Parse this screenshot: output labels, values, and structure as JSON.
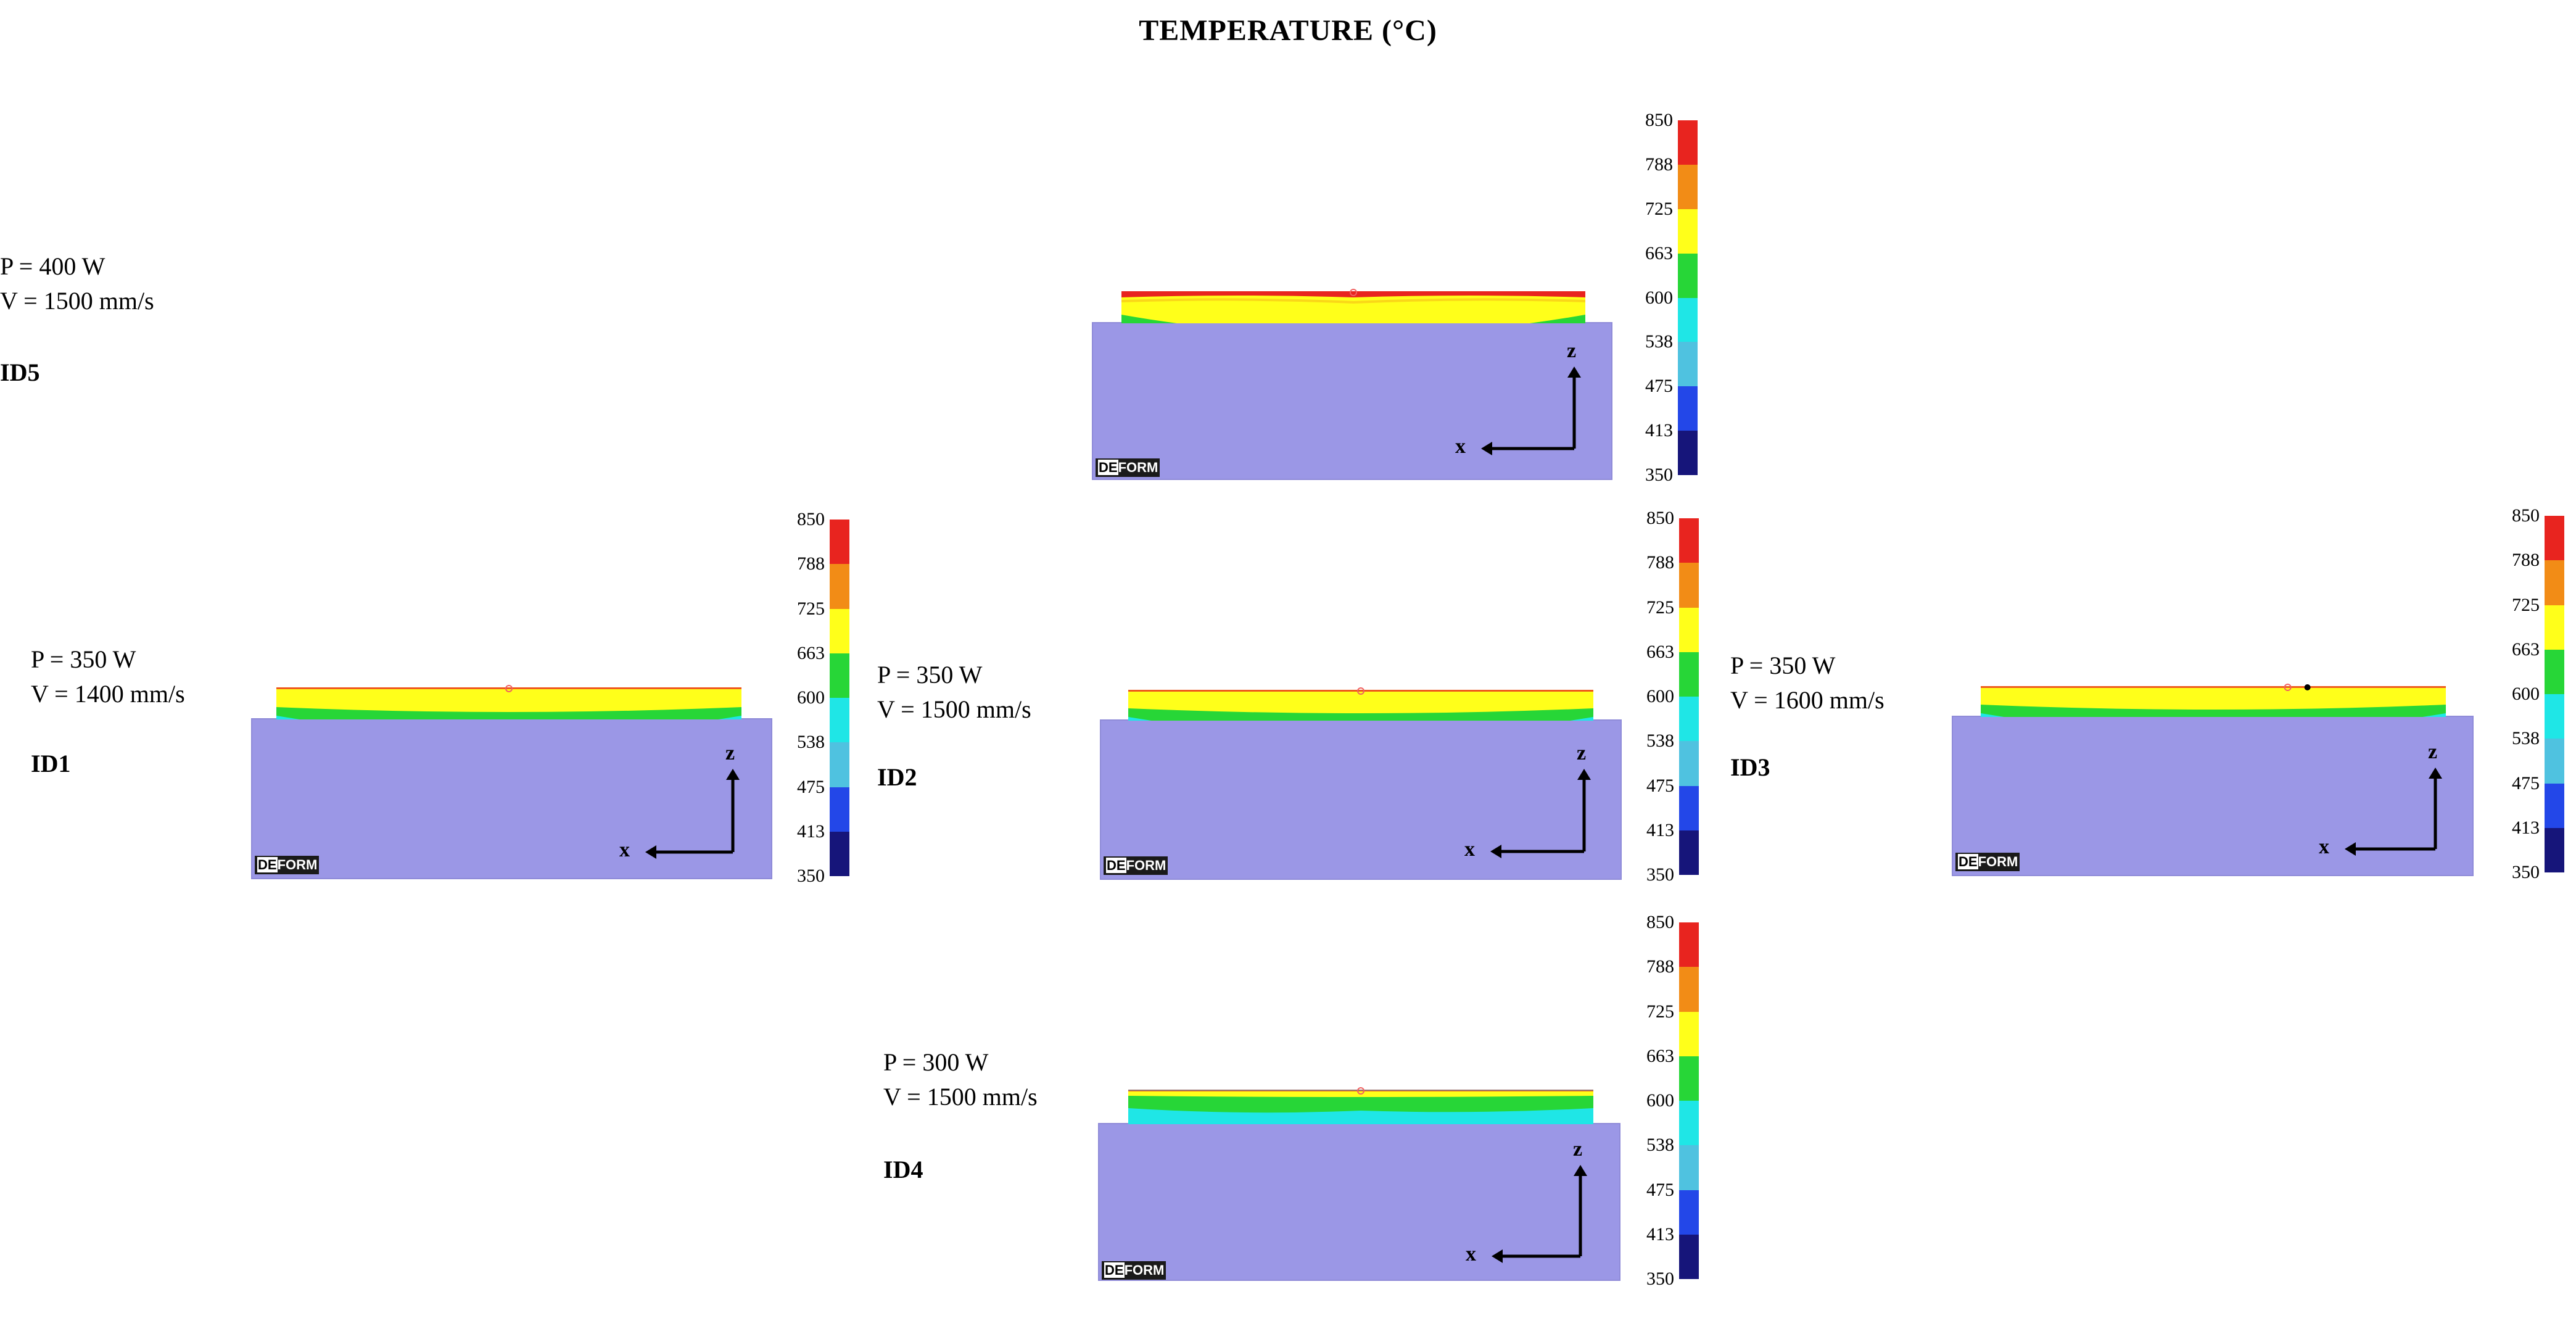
{
  "title": "TEMPERATURE (°C)",
  "colorbar": {
    "ticks": [
      "850",
      "788",
      "725",
      "663",
      "600",
      "538",
      "475",
      "413",
      "350"
    ],
    "colors": [
      "#e8241f",
      "#f28c16",
      "#ffff1a",
      "#27d637",
      "#1fe6e6",
      "#4fc2e0",
      "#2347e8",
      "#16157a"
    ],
    "min": 350,
    "max": 850
  },
  "logo": {
    "de": "DE",
    "form": "FORM"
  },
  "axes": {
    "z": "z",
    "x": "x"
  },
  "simulations": [
    {
      "id": "ID5",
      "power": "P = 400 W",
      "speed": "V = 1500 mm/s"
    },
    {
      "id": "ID1",
      "power": "P = 350 W",
      "speed": "V = 1400 mm/s"
    },
    {
      "id": "ID2",
      "power": "P = 350 W",
      "speed": "V = 1500 mm/s"
    },
    {
      "id": "ID3",
      "power": "P = 350 W",
      "speed": "V = 1600 mm/s"
    },
    {
      "id": "ID4",
      "power": "P = 300 W",
      "speed": "V = 1500 mm/s"
    }
  ]
}
